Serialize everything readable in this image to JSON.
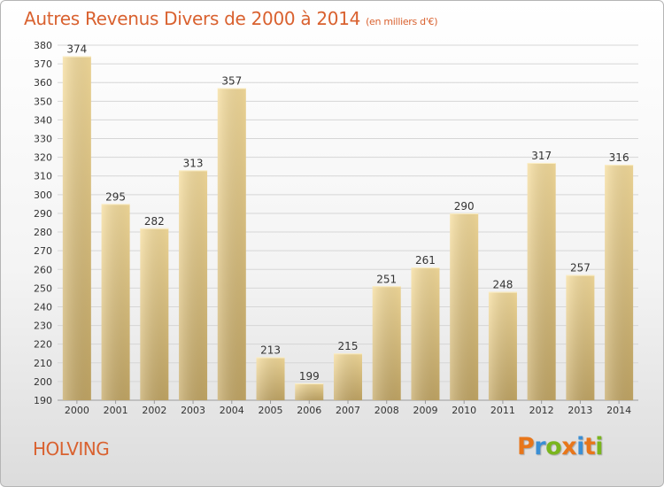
{
  "title": "Autres Revenus Divers de 2000 à 2014",
  "unit_note": "(en milliers d'€)",
  "location": "HOLVING",
  "logo": {
    "letters": [
      "P",
      "r",
      "o",
      "x",
      "i",
      "t",
      "i"
    ],
    "colors": [
      "#e8761a",
      "#3b8fd4",
      "#7ab51d",
      "#e8761a",
      "#3b8fd4",
      "#e8761a",
      "#7ab51d"
    ]
  },
  "colors": {
    "title": "#d9612f",
    "bar_top": "#f6dd9c",
    "bar_bottom": "#c4a866"
  },
  "chart_data": {
    "type": "bar",
    "categories": [
      "2000",
      "2001",
      "2002",
      "2003",
      "2004",
      "2005",
      "2006",
      "2007",
      "2008",
      "2009",
      "2010",
      "2011",
      "2012",
      "2013",
      "2014"
    ],
    "values": [
      374,
      295,
      282,
      313,
      357,
      213,
      199,
      215,
      251,
      261,
      290,
      248,
      317,
      257,
      316
    ],
    "ylim": [
      190,
      380
    ],
    "ytick_step": 10,
    "grid": true,
    "data_labels": true
  }
}
